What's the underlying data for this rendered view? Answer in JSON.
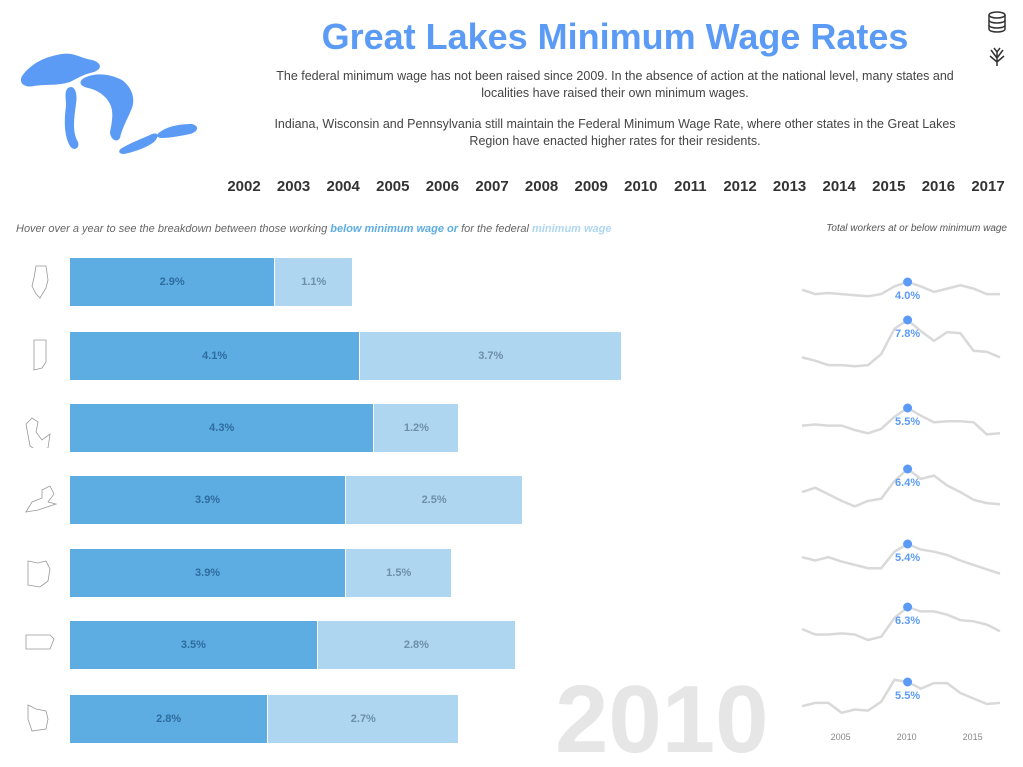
{
  "title": "Great Lakes Minimum Wage Rates",
  "description": [
    "The federal minimum wage has not been raised since 2009. In the absence of action at the national level, many states and localities have raised their own minimum wages.",
    "Indiana, Wisconsin and Pennsylvania still maintain the Federal Minimum Wage Rate, where other states in the Great Lakes Region have enacted higher rates for their residents."
  ],
  "years": [
    "2002",
    "2003",
    "2004",
    "2005",
    "2006",
    "2007",
    "2008",
    "2009",
    "2010",
    "2011",
    "2012",
    "2013",
    "2014",
    "2015",
    "2016",
    "2017"
  ],
  "selected_year": "2010",
  "hover_note": {
    "pre": "Hover over a year to see the breakdown between those working ",
    "below": "below minimum wage or",
    "mid": " for the federal ",
    "at": "minimum wage"
  },
  "total_note": "Total workers at or below minimum wage",
  "colors": {
    "below": "#5dade2",
    "at": "#aed6f1",
    "accent": "#5b9bf5",
    "line": "#d9d9d9"
  },
  "icons": [
    "database-icon",
    "tableau-icon",
    "great-lakes-map-icon"
  ],
  "chart_data": {
    "type": "bar",
    "categories": [
      "Illinois",
      "Indiana",
      "Michigan",
      "New York",
      "Ohio",
      "Pennsylvania",
      "Wisconsin"
    ],
    "series": [
      {
        "name": "below minimum wage",
        "values": [
          2.9,
          4.1,
          4.3,
          3.9,
          3.9,
          3.5,
          2.8
        ],
        "labels": [
          "2.9%",
          "4.1%",
          "4.3%",
          "3.9%",
          "3.9%",
          "3.5%",
          "2.8%"
        ]
      },
      {
        "name": "minimum wage",
        "values": [
          1.1,
          3.7,
          1.2,
          2.5,
          1.5,
          2.8,
          2.7
        ],
        "labels": [
          "1.1%",
          "3.7%",
          "1.2%",
          "2.5%",
          "1.5%",
          "2.8%",
          "2.7%"
        ]
      }
    ],
    "sparklines": {
      "type": "line",
      "x": [
        2002,
        2003,
        2004,
        2005,
        2006,
        2007,
        2008,
        2009,
        2010,
        2011,
        2012,
        2013,
        2014,
        2015,
        2016,
        2017
      ],
      "x_ticks": [
        "2005",
        "2010",
        "2015"
      ],
      "highlight_labels": [
        "4.0%",
        "7.8%",
        "5.5%",
        "6.4%",
        "5.4%",
        "6.3%",
        "5.5%"
      ],
      "series": [
        [
          3.3,
          2.9,
          3.0,
          2.9,
          2.8,
          2.7,
          2.9,
          3.6,
          4.0,
          3.6,
          3.1,
          3.4,
          3.7,
          3.4,
          2.9,
          2.9
        ],
        [
          4.4,
          4.1,
          3.7,
          3.7,
          3.6,
          3.7,
          4.7,
          7.0,
          7.8,
          6.8,
          5.9,
          6.7,
          6.6,
          5.0,
          4.9,
          4.4
        ],
        [
          3.9,
          4.0,
          3.9,
          3.9,
          3.5,
          3.2,
          3.6,
          4.7,
          5.5,
          4.8,
          4.2,
          4.3,
          4.3,
          4.2,
          3.1,
          3.2
        ],
        [
          4.3,
          4.7,
          4.1,
          3.5,
          3.0,
          3.5,
          3.7,
          5.3,
          6.4,
          5.5,
          5.8,
          4.9,
          4.3,
          3.6,
          3.3,
          3.2
        ],
        [
          4.2,
          3.9,
          4.2,
          3.8,
          3.5,
          3.2,
          3.2,
          4.7,
          5.4,
          4.9,
          4.7,
          4.4,
          3.9,
          3.5,
          3.1,
          2.7
        ],
        [
          4.3,
          3.8,
          3.8,
          3.9,
          3.8,
          3.3,
          3.6,
          5.3,
          6.3,
          5.9,
          5.9,
          5.6,
          5.1,
          5.0,
          4.7,
          4.1
        ],
        [
          3.3,
          3.6,
          3.6,
          2.7,
          3.0,
          2.9,
          3.7,
          5.7,
          5.5,
          4.9,
          5.4,
          5.4,
          4.5,
          4.0,
          3.5,
          3.6
        ]
      ]
    }
  }
}
